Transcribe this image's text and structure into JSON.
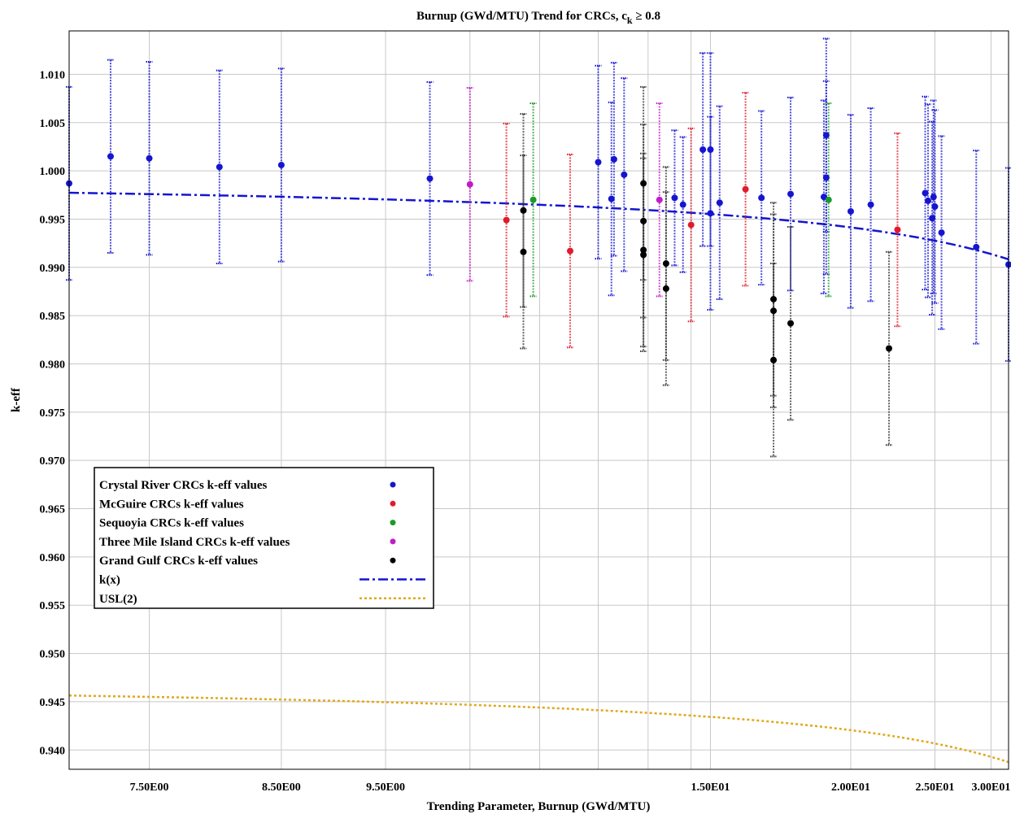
{
  "chart_data": {
    "type": "scatter",
    "title": "Burnup (GWd/MTU) Trend for CRCs, c",
    "title_subscript": "k",
    "title_suffix": " ≥ 0.8",
    "xlabel": "Trending Parameter, Burnup (GWd/MTU)",
    "ylabel": "k-eff",
    "x_scale": "reciprocal",
    "xlim": [
      7.0,
      32.0
    ],
    "ylim": [
      0.938,
      1.0145
    ],
    "x_ticks": [
      {
        "value": 7.5,
        "label": "7.50E00"
      },
      {
        "value": 8.5,
        "label": "8.50E00"
      },
      {
        "value": 9.5,
        "label": "9.50E00"
      },
      {
        "value": 15,
        "label": "1.50E01"
      },
      {
        "value": 20,
        "label": "2.00E01"
      },
      {
        "value": 25,
        "label": "2.50E01"
      },
      {
        "value": 30,
        "label": "3.00E01"
      }
    ],
    "x_grid": [
      7.5,
      8.5,
      9.5,
      10.5,
      11.5,
      12.5,
      13.5,
      14.5,
      15,
      20,
      25,
      30
    ],
    "y_ticks": [
      {
        "value": 0.94,
        "label": "0.940"
      },
      {
        "value": 0.945,
        "label": "0.945"
      },
      {
        "value": 0.95,
        "label": "0.950"
      },
      {
        "value": 0.955,
        "label": "0.955"
      },
      {
        "value": 0.96,
        "label": "0.960"
      },
      {
        "value": 0.965,
        "label": "0.965"
      },
      {
        "value": 0.97,
        "label": "0.970"
      },
      {
        "value": 0.975,
        "label": "0.975"
      },
      {
        "value": 0.98,
        "label": "0.980"
      },
      {
        "value": 0.985,
        "label": "0.985"
      },
      {
        "value": 0.99,
        "label": "0.990"
      },
      {
        "value": 0.995,
        "label": "0.995"
      },
      {
        "value": 1.0,
        "label": "1.000"
      },
      {
        "value": 1.005,
        "label": "1.005"
      },
      {
        "value": 1.01,
        "label": "1.010"
      }
    ],
    "grid": true,
    "legend_position": "bottom-left",
    "series": [
      {
        "name": "Crystal River CRCs k-eff values",
        "color": "#1515d0",
        "points": [
          {
            "x": 7.0,
            "y": 0.9987,
            "err": 0.01
          },
          {
            "x": 7.25,
            "y": 1.0015,
            "err": 0.01
          },
          {
            "x": 7.5,
            "y": 1.0013,
            "err": 0.01
          },
          {
            "x": 8.0,
            "y": 1.0004,
            "err": 0.01
          },
          {
            "x": 8.5,
            "y": 1.0006,
            "err": 0.01
          },
          {
            "x": 10.0,
            "y": 0.9992,
            "err": 0.01
          },
          {
            "x": 12.5,
            "y": 1.0009,
            "err": 0.01
          },
          {
            "x": 12.75,
            "y": 0.9971,
            "err": 0.01
          },
          {
            "x": 12.8,
            "y": 1.0012,
            "err": 0.01
          },
          {
            "x": 13.0,
            "y": 0.9996,
            "err": 0.01
          },
          {
            "x": 14.1,
            "y": 0.9972,
            "err": 0.007
          },
          {
            "x": 14.3,
            "y": 0.9965,
            "err": 0.007
          },
          {
            "x": 14.8,
            "y": 1.0022,
            "err": 0.01
          },
          {
            "x": 15.0,
            "y": 1.0022,
            "err": 0.01
          },
          {
            "x": 15.0,
            "y": 0.9956,
            "err": 0.01
          },
          {
            "x": 15.25,
            "y": 0.9967,
            "err": 0.01
          },
          {
            "x": 16.5,
            "y": 0.9972,
            "err": 0.009
          },
          {
            "x": 17.5,
            "y": 0.9976,
            "err": 0.01
          },
          {
            "x": 18.8,
            "y": 0.9973,
            "err": 0.01
          },
          {
            "x": 18.9,
            "y": 1.0037,
            "err": 0.01
          },
          {
            "x": 18.9,
            "y": 0.9993,
            "err": 0.01
          },
          {
            "x": 20.0,
            "y": 0.9958,
            "err": 0.01
          },
          {
            "x": 21.0,
            "y": 0.9965,
            "err": 0.01
          },
          {
            "x": 24.3,
            "y": 0.9977,
            "err": 0.01
          },
          {
            "x": 24.5,
            "y": 0.9969,
            "err": 0.01
          },
          {
            "x": 24.8,
            "y": 0.9951,
            "err": 0.01
          },
          {
            "x": 24.9,
            "y": 0.9973,
            "err": 0.01
          },
          {
            "x": 25.0,
            "y": 0.9963,
            "err": 0.01
          },
          {
            "x": 25.5,
            "y": 0.9936,
            "err": 0.01
          },
          {
            "x": 28.5,
            "y": 0.9921,
            "err": 0.01
          },
          {
            "x": 32.0,
            "y": 0.9903,
            "err": 0.01
          }
        ]
      },
      {
        "name": "McGuire CRCs k-eff values",
        "color": "#e01c2c",
        "points": [
          {
            "x": 11.0,
            "y": 0.9949,
            "err": 0.01
          },
          {
            "x": 12.0,
            "y": 0.9917,
            "err": 0.01
          },
          {
            "x": 14.5,
            "y": 0.9944,
            "err": 0.01
          },
          {
            "x": 16.0,
            "y": 0.9981,
            "err": 0.01
          },
          {
            "x": 22.5,
            "y": 0.9939,
            "err": 0.01
          }
        ]
      },
      {
        "name": "Sequoyia CRCs k-eff values",
        "color": "#1a9a2a",
        "points": [
          {
            "x": 11.4,
            "y": 0.997,
            "err": 0.01
          },
          {
            "x": 19.0,
            "y": 0.997,
            "err": 0.01
          }
        ]
      },
      {
        "name": "Three Mile Island CRCs k-eff values",
        "color": "#c21cc8",
        "points": [
          {
            "x": 10.5,
            "y": 0.9986,
            "err": 0.01
          },
          {
            "x": 13.75,
            "y": 0.997,
            "err": 0.01
          }
        ]
      },
      {
        "name": "Grand Gulf CRCs k-eff values",
        "color": "#000000",
        "points": [
          {
            "x": 11.25,
            "y": 0.9959,
            "err": 0.01
          },
          {
            "x": 11.25,
            "y": 0.9916,
            "err": 0.01
          },
          {
            "x": 13.4,
            "y": 0.9987,
            "err": 0.01
          },
          {
            "x": 13.4,
            "y": 0.9948,
            "err": 0.01
          },
          {
            "x": 13.4,
            "y": 0.9918,
            "err": 0.01
          },
          {
            "x": 13.4,
            "y": 0.9913,
            "err": 0.01
          },
          {
            "x": 13.9,
            "y": 0.9904,
            "err": 0.01
          },
          {
            "x": 13.9,
            "y": 0.9878,
            "err": 0.01
          },
          {
            "x": 16.9,
            "y": 0.9867,
            "err": 0.01
          },
          {
            "x": 16.9,
            "y": 0.9855,
            "err": 0.01
          },
          {
            "x": 16.9,
            "y": 0.9804,
            "err": 0.01
          },
          {
            "x": 17.5,
            "y": 0.9842,
            "err": 0.01
          },
          {
            "x": 22.0,
            "y": 0.9816,
            "err": 0.01
          }
        ]
      }
    ],
    "lines": [
      {
        "name": "k(x)",
        "color": "#1515d0",
        "style": "dash-dot",
        "x": [
          7.0,
          32.0
        ],
        "y": [
          0.99773,
          0.99083
        ]
      },
      {
        "name": "USL(2)",
        "color": "#e0a81c",
        "style": "dotted",
        "x": [
          7.0,
          32.0
        ],
        "y": [
          0.94564,
          0.93874
        ]
      }
    ]
  }
}
